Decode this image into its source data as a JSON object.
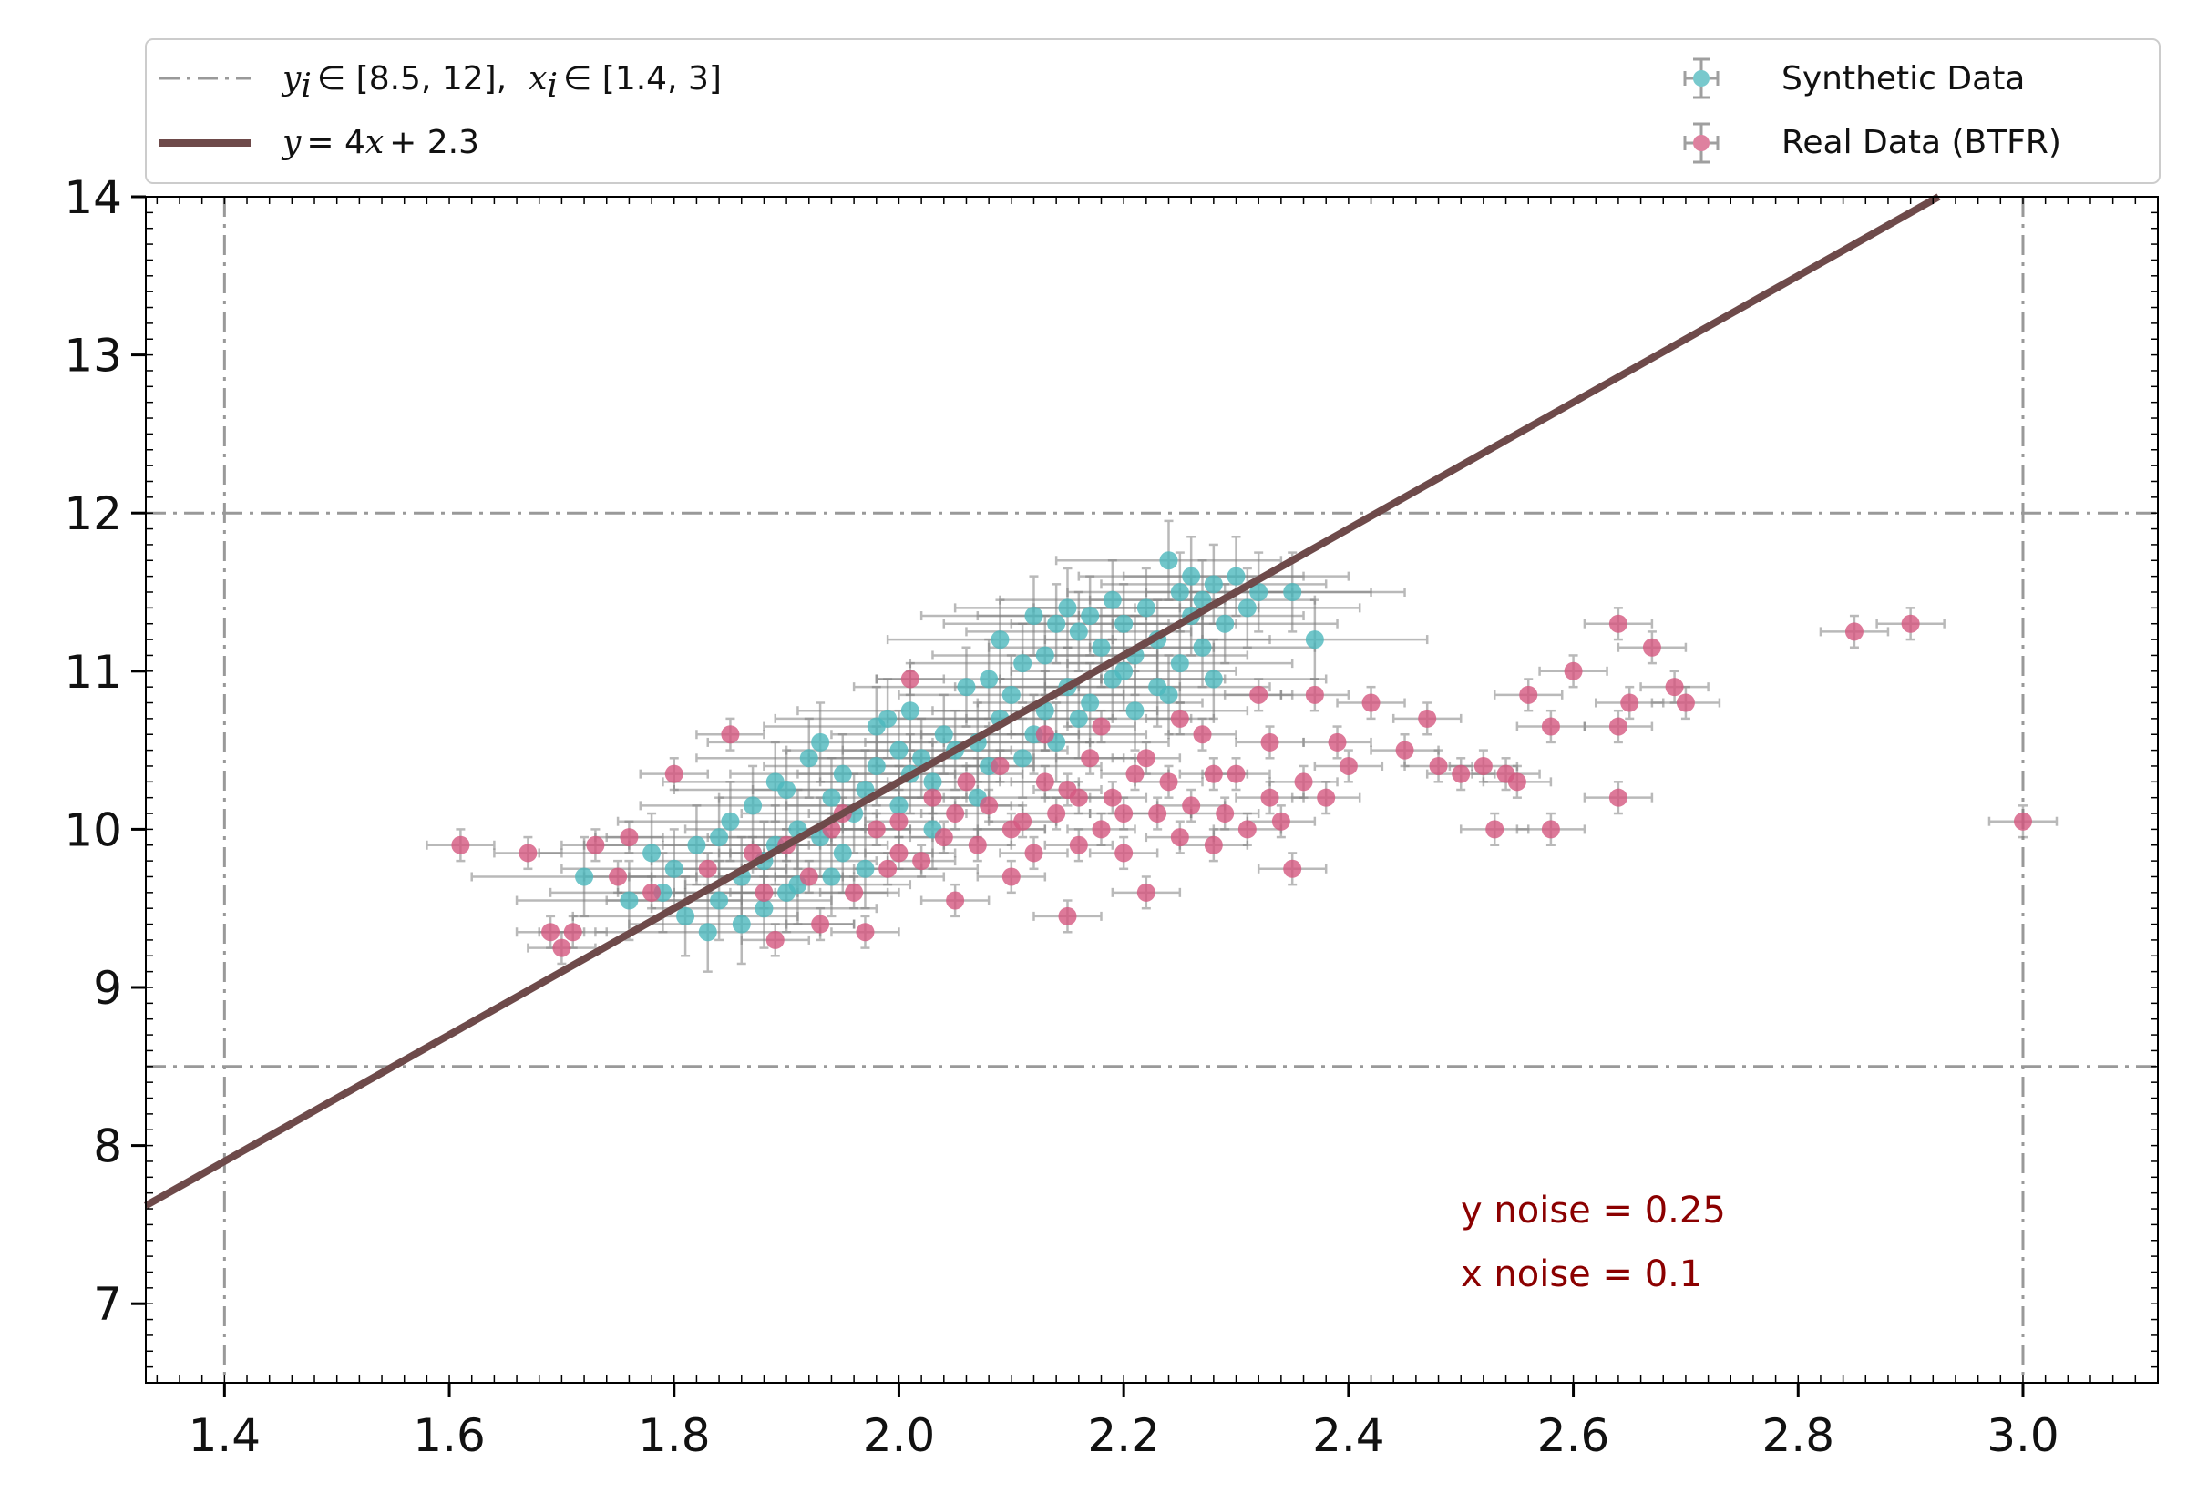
{
  "chart_data": {
    "type": "scatter",
    "title": "",
    "xlabel": "",
    "ylabel": "",
    "xlim": [
      1.33,
      3.12
    ],
    "ylim": [
      6.5,
      14.0
    ],
    "x_ticks": [
      1.4,
      1.6,
      1.8,
      2.0,
      2.2,
      2.4,
      2.6,
      2.8,
      3.0
    ],
    "x_tick_labels": [
      "1.4",
      "1.6",
      "1.8",
      "2.0",
      "2.2",
      "2.4",
      "2.6",
      "2.8",
      "3.0"
    ],
    "y_ticks": [
      7,
      8,
      9,
      10,
      11,
      12,
      13,
      14
    ],
    "y_tick_labels": [
      "7",
      "8",
      "9",
      "10",
      "11",
      "12",
      "13",
      "14"
    ],
    "grid": false,
    "legend_position": "top, above plot",
    "colors": {
      "synthetic": "#4cb8bd",
      "real": "#d4577f",
      "errorbar": "#808080",
      "fit_line": "#6e4a4a",
      "bounds": "#999999",
      "annotation": "#8b0000"
    },
    "legend": {
      "bounds_label": "y_i ∈ [8.5, 12],  x_i ∈ [1.4, 3]",
      "bounds_y_text": "y",
      "bounds_y_sub": "i",
      "bounds_y_range": "∈ [8.5, 12],",
      "bounds_x_text": "x",
      "bounds_x_sub": "i",
      "bounds_x_range": "∈ [1.4, 3]",
      "fit_label": "y = 4x + 2.3",
      "fit_y": "y",
      "fit_eq": "= 4",
      "fit_x": "x",
      "fit_rest": "+ 2.3",
      "synthetic_label": "Synthetic Data",
      "real_label": "Real Data (BTFR)"
    },
    "fit_line": {
      "slope": 4,
      "intercept": 2.3
    },
    "bounds": {
      "y": [
        8.5,
        12
      ],
      "x": [
        1.4,
        3.0
      ]
    },
    "annotations": [
      "y noise = 0.25",
      "x noise = 0.1"
    ],
    "series": [
      {
        "name": "Synthetic Data",
        "x_error": 0.1,
        "y_error": 0.25,
        "points": [
          [
            1.72,
            9.7
          ],
          [
            1.76,
            9.55
          ],
          [
            1.78,
            9.85
          ],
          [
            1.79,
            9.6
          ],
          [
            1.8,
            9.75
          ],
          [
            1.82,
            9.9
          ],
          [
            1.83,
            9.35
          ],
          [
            1.84,
            9.95
          ],
          [
            1.85,
            10.05
          ],
          [
            1.86,
            9.7
          ],
          [
            1.86,
            9.4
          ],
          [
            1.87,
            10.15
          ],
          [
            1.88,
            9.8
          ],
          [
            1.89,
            10.3
          ],
          [
            1.9,
            9.6
          ],
          [
            1.9,
            10.25
          ],
          [
            1.91,
            10.0
          ],
          [
            1.92,
            10.45
          ],
          [
            1.93,
            10.55
          ],
          [
            1.93,
            9.95
          ],
          [
            1.94,
            10.2
          ],
          [
            1.95,
            10.35
          ],
          [
            1.96,
            10.1
          ],
          [
            1.97,
            10.25
          ],
          [
            1.98,
            10.65
          ],
          [
            1.98,
            10.4
          ],
          [
            1.99,
            10.7
          ],
          [
            2.0,
            10.15
          ],
          [
            2.0,
            10.5
          ],
          [
            2.01,
            10.75
          ],
          [
            2.02,
            10.45
          ],
          [
            2.03,
            10.3
          ],
          [
            2.04,
            10.6
          ],
          [
            2.05,
            10.5
          ],
          [
            2.06,
            10.9
          ],
          [
            2.07,
            10.55
          ],
          [
            2.08,
            10.95
          ],
          [
            2.09,
            10.7
          ],
          [
            2.09,
            11.2
          ],
          [
            2.1,
            10.85
          ],
          [
            2.11,
            11.05
          ],
          [
            2.12,
            11.35
          ],
          [
            2.12,
            10.6
          ],
          [
            2.13,
            11.1
          ],
          [
            2.14,
            11.3
          ],
          [
            2.15,
            10.9
          ],
          [
            2.15,
            11.4
          ],
          [
            2.16,
            11.25
          ],
          [
            2.17,
            10.8
          ],
          [
            2.17,
            11.35
          ],
          [
            2.18,
            11.15
          ],
          [
            2.19,
            11.45
          ],
          [
            2.2,
            11.0
          ],
          [
            2.2,
            11.3
          ],
          [
            2.21,
            10.75
          ],
          [
            2.22,
            11.4
          ],
          [
            2.23,
            11.2
          ],
          [
            2.23,
            10.9
          ],
          [
            2.24,
            11.7
          ],
          [
            2.25,
            11.5
          ],
          [
            2.25,
            11.05
          ],
          [
            2.26,
            11.35
          ],
          [
            2.27,
            11.45
          ],
          [
            2.27,
            11.15
          ],
          [
            2.28,
            11.55
          ],
          [
            2.29,
            11.3
          ],
          [
            2.3,
            11.6
          ],
          [
            2.31,
            11.4
          ],
          [
            2.32,
            11.5
          ],
          [
            2.35,
            11.5
          ],
          [
            2.37,
            11.2
          ],
          [
            2.21,
            11.1
          ],
          [
            2.19,
            10.95
          ],
          [
            2.16,
            10.7
          ],
          [
            2.14,
            10.55
          ],
          [
            2.11,
            10.45
          ],
          [
            2.07,
            10.2
          ],
          [
            2.03,
            10.0
          ],
          [
            1.97,
            9.75
          ],
          [
            1.95,
            9.85
          ],
          [
            1.91,
            9.65
          ],
          [
            1.88,
            9.5
          ],
          [
            1.84,
            9.55
          ],
          [
            1.81,
            9.45
          ],
          [
            2.28,
            10.95
          ],
          [
            2.26,
            11.6
          ],
          [
            2.24,
            10.85
          ],
          [
            2.13,
            10.75
          ],
          [
            2.08,
            10.4
          ],
          [
            2.01,
            10.35
          ],
          [
            1.94,
            9.7
          ],
          [
            1.89,
            9.9
          ]
        ]
      },
      {
        "name": "Real Data (BTFR)",
        "x_error": 0.03,
        "y_error": 0.1,
        "points": [
          [
            1.61,
            9.9
          ],
          [
            1.67,
            9.85
          ],
          [
            1.69,
            9.35
          ],
          [
            1.7,
            9.25
          ],
          [
            1.71,
            9.35
          ],
          [
            1.73,
            9.9
          ],
          [
            1.75,
            9.7
          ],
          [
            1.78,
            9.6
          ],
          [
            1.8,
            10.35
          ],
          [
            1.85,
            10.6
          ],
          [
            1.88,
            9.6
          ],
          [
            1.89,
            9.3
          ],
          [
            1.9,
            9.9
          ],
          [
            1.92,
            9.7
          ],
          [
            1.93,
            9.4
          ],
          [
            1.95,
            10.1
          ],
          [
            1.96,
            9.6
          ],
          [
            1.97,
            9.35
          ],
          [
            1.98,
            10.0
          ],
          [
            1.99,
            9.75
          ],
          [
            2.0,
            10.05
          ],
          [
            2.01,
            10.95
          ],
          [
            2.02,
            9.8
          ],
          [
            2.03,
            10.2
          ],
          [
            2.04,
            9.95
          ],
          [
            2.05,
            9.55
          ],
          [
            2.06,
            10.3
          ],
          [
            2.07,
            9.9
          ],
          [
            2.08,
            10.15
          ],
          [
            2.09,
            10.4
          ],
          [
            2.1,
            9.7
          ],
          [
            2.11,
            10.05
          ],
          [
            2.12,
            9.85
          ],
          [
            2.13,
            10.3
          ],
          [
            2.14,
            10.1
          ],
          [
            2.15,
            9.45
          ],
          [
            2.15,
            10.25
          ],
          [
            2.16,
            9.9
          ],
          [
            2.17,
            10.45
          ],
          [
            2.18,
            10.0
          ],
          [
            2.19,
            10.2
          ],
          [
            2.2,
            9.85
          ],
          [
            2.21,
            10.35
          ],
          [
            2.22,
            9.6
          ],
          [
            2.23,
            10.1
          ],
          [
            2.24,
            10.3
          ],
          [
            2.25,
            9.95
          ],
          [
            2.26,
            10.15
          ],
          [
            2.27,
            10.6
          ],
          [
            2.28,
            9.9
          ],
          [
            2.29,
            10.1
          ],
          [
            2.3,
            10.35
          ],
          [
            2.31,
            10.0
          ],
          [
            2.32,
            10.85
          ],
          [
            2.33,
            10.2
          ],
          [
            2.34,
            10.05
          ],
          [
            2.35,
            9.75
          ],
          [
            2.36,
            10.3
          ],
          [
            2.37,
            10.85
          ],
          [
            2.38,
            10.2
          ],
          [
            2.39,
            10.55
          ],
          [
            2.4,
            10.4
          ],
          [
            2.42,
            10.8
          ],
          [
            2.45,
            10.5
          ],
          [
            2.47,
            10.7
          ],
          [
            2.48,
            10.4
          ],
          [
            2.5,
            10.35
          ],
          [
            2.52,
            10.4
          ],
          [
            2.53,
            10.0
          ],
          [
            2.54,
            10.35
          ],
          [
            2.55,
            10.3
          ],
          [
            2.56,
            10.85
          ],
          [
            2.58,
            10.65
          ],
          [
            2.58,
            10.0
          ],
          [
            2.6,
            11.0
          ],
          [
            2.64,
            11.3
          ],
          [
            2.64,
            10.65
          ],
          [
            2.64,
            10.2
          ],
          [
            2.65,
            10.8
          ],
          [
            2.67,
            11.15
          ],
          [
            2.69,
            10.9
          ],
          [
            2.7,
            10.8
          ],
          [
            2.85,
            11.25
          ],
          [
            2.9,
            11.3
          ],
          [
            3.0,
            10.05
          ],
          [
            1.76,
            9.95
          ],
          [
            1.83,
            9.75
          ],
          [
            1.87,
            9.85
          ],
          [
            1.94,
            10.0
          ],
          [
            2.0,
            9.85
          ],
          [
            2.05,
            10.1
          ],
          [
            2.1,
            10.0
          ],
          [
            2.13,
            10.6
          ],
          [
            2.18,
            10.65
          ],
          [
            2.22,
            10.45
          ],
          [
            2.25,
            10.7
          ],
          [
            2.28,
            10.35
          ],
          [
            2.33,
            10.55
          ],
          [
            2.2,
            10.1
          ],
          [
            2.16,
            10.2
          ]
        ]
      }
    ]
  }
}
